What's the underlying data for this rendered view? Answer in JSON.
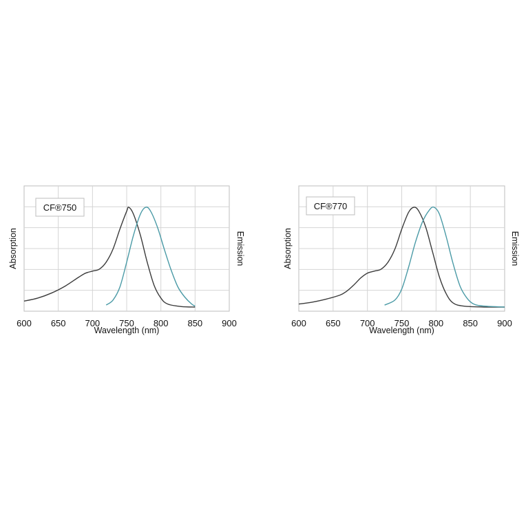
{
  "chart_data": [
    {
      "type": "line",
      "title": "",
      "label": "CF®750",
      "xlabel": "Wavelength (nm)",
      "ylabel_left": "Absorption",
      "ylabel_right": "Emission",
      "xlim": [
        600,
        900
      ],
      "ylim": [
        0,
        1
      ],
      "x_ticks": [
        "600",
        "650",
        "700",
        "750",
        "800",
        "850",
        "900"
      ],
      "grid": true,
      "series": [
        {
          "color": "#3b3b3b",
          "points": [
            [
              600,
              0.06
            ],
            [
              620,
              0.09
            ],
            [
              640,
              0.14
            ],
            [
              660,
              0.21
            ],
            [
              680,
              0.3
            ],
            [
              690,
              0.34
            ],
            [
              700,
              0.36
            ],
            [
              710,
              0.38
            ],
            [
              720,
              0.45
            ],
            [
              730,
              0.58
            ],
            [
              740,
              0.78
            ],
            [
              750,
              0.96
            ],
            [
              753,
              1.0
            ],
            [
              760,
              0.93
            ],
            [
              770,
              0.72
            ],
            [
              780,
              0.45
            ],
            [
              790,
              0.22
            ],
            [
              800,
              0.09
            ],
            [
              810,
              0.03
            ],
            [
              830,
              0.005
            ],
            [
              850,
              0.0
            ]
          ]
        },
        {
          "color": "#4a9aa6",
          "points": [
            [
              720,
              0.02
            ],
            [
              730,
              0.07
            ],
            [
              740,
              0.2
            ],
            [
              750,
              0.45
            ],
            [
              760,
              0.72
            ],
            [
              770,
              0.93
            ],
            [
              778,
              1.0
            ],
            [
              785,
              0.96
            ],
            [
              795,
              0.8
            ],
            [
              805,
              0.58
            ],
            [
              815,
              0.37
            ],
            [
              825,
              0.2
            ],
            [
              835,
              0.1
            ],
            [
              845,
              0.03
            ],
            [
              850,
              0.01
            ]
          ]
        }
      ]
    },
    {
      "type": "line",
      "title": "",
      "label": "CF®770",
      "xlabel": "Wavelength (nm)",
      "ylabel_left": "Absorption",
      "ylabel_right": "Emission",
      "xlim": [
        600,
        900
      ],
      "ylim": [
        0,
        1
      ],
      "x_ticks": [
        "600",
        "650",
        "700",
        "750",
        "800",
        "850",
        "900"
      ],
      "grid": true,
      "series": [
        {
          "color": "#3b3b3b",
          "points": [
            [
              600,
              0.03
            ],
            [
              620,
              0.05
            ],
            [
              640,
              0.08
            ],
            [
              660,
              0.12
            ],
            [
              670,
              0.16
            ],
            [
              680,
              0.22
            ],
            [
              690,
              0.29
            ],
            [
              700,
              0.34
            ],
            [
              710,
              0.36
            ],
            [
              720,
              0.38
            ],
            [
              730,
              0.45
            ],
            [
              740,
              0.58
            ],
            [
              750,
              0.78
            ],
            [
              760,
              0.95
            ],
            [
              768,
              1.0
            ],
            [
              775,
              0.96
            ],
            [
              785,
              0.8
            ],
            [
              795,
              0.55
            ],
            [
              805,
              0.3
            ],
            [
              815,
              0.13
            ],
            [
              825,
              0.04
            ],
            [
              840,
              0.01
            ],
            [
              870,
              0.0
            ],
            [
              900,
              0.0
            ]
          ]
        },
        {
          "color": "#4a9aa6",
          "points": [
            [
              725,
              0.02
            ],
            [
              740,
              0.07
            ],
            [
              750,
              0.18
            ],
            [
              760,
              0.4
            ],
            [
              770,
              0.65
            ],
            [
              780,
              0.85
            ],
            [
              790,
              0.97
            ],
            [
              797,
              1.0
            ],
            [
              805,
              0.93
            ],
            [
              815,
              0.7
            ],
            [
              825,
              0.43
            ],
            [
              835,
              0.21
            ],
            [
              845,
              0.09
            ],
            [
              855,
              0.03
            ],
            [
              870,
              0.01
            ],
            [
              900,
              0.0
            ]
          ]
        }
      ]
    }
  ]
}
